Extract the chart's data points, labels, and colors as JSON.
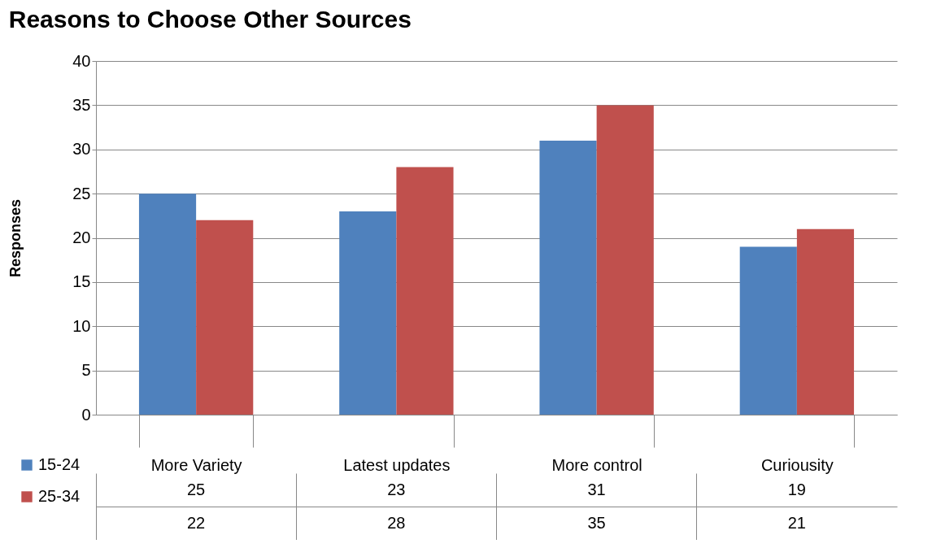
{
  "chart_data": {
    "type": "bar",
    "title": "Reasons to Choose Other Sources",
    "ylabel": "Responses",
    "categories": [
      "More Variety",
      "Latest updates",
      "More control",
      "Curiousity"
    ],
    "series": [
      {
        "name": "15-24",
        "color": "#4f81bd",
        "values": [
          25,
          23,
          31,
          19
        ]
      },
      {
        "name": "25-34",
        "color": "#c0504d",
        "values": [
          22,
          28,
          35,
          21
        ]
      }
    ],
    "ylim": [
      0,
      40
    ],
    "yticks": [
      0,
      5,
      10,
      15,
      20,
      25,
      30,
      35,
      40
    ],
    "grid": "y",
    "legend": "bottom left",
    "data_labels": true
  }
}
